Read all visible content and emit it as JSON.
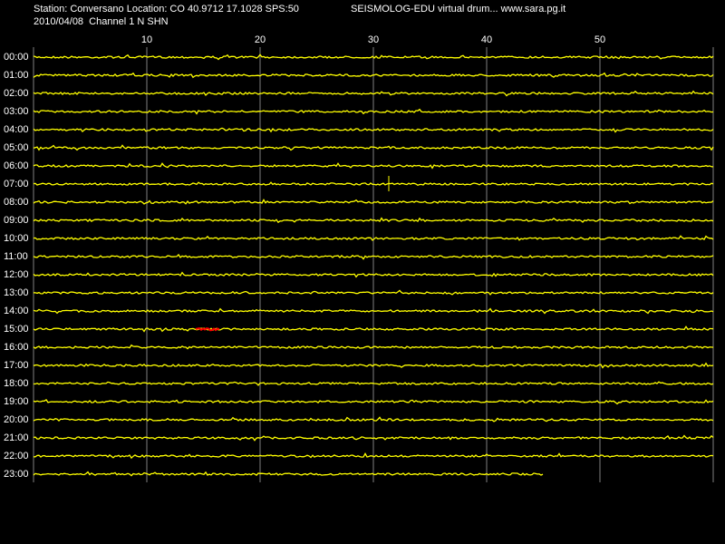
{
  "header": {
    "station": "Station: Conversano Location: CO 40.9712 17.1028 SPS:50",
    "app": "SEISMOLOG-EDU virtual drum... www.sara.pg.it",
    "date_channel": "2010/04/08  Channel 1 N SHN"
  },
  "x_axis": {
    "ticks": [
      10,
      20,
      30,
      40,
      50
    ]
  },
  "rows": [
    "00:00",
    "01:00",
    "02:00",
    "03:00",
    "04:00",
    "05:00",
    "06:00",
    "07:00",
    "08:00",
    "09:00",
    "10:00",
    "11:00",
    "12:00",
    "13:00",
    "14:00",
    "15:00",
    "16:00",
    "17:00",
    "18:00",
    "19:00",
    "20:00",
    "21:00",
    "22:00",
    "23:00"
  ]
}
